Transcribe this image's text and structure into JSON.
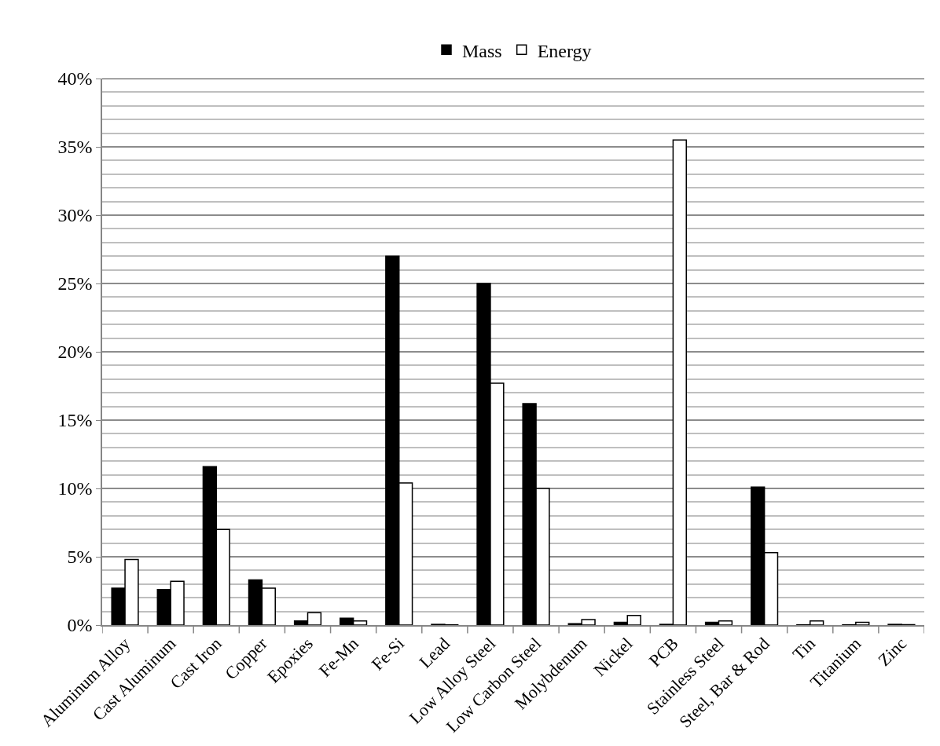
{
  "chart_data": {
    "type": "bar",
    "categories": [
      "Aluminum Alloy",
      "Cast Aluminum",
      "Cast Iron",
      "Copper",
      "Epoxies",
      "Fe-Mn",
      "Fe-Si",
      "Lead",
      "Low Alloy Steel",
      "Low Carbon Steel",
      "Molybdenum",
      "Nickel",
      "PCB",
      "Stainless Steel",
      "Steel, Bar & Rod",
      "Tin",
      "Titanium",
      "Zinc"
    ],
    "series": [
      {
        "name": "Mass",
        "color": "#000000",
        "values": [
          2.7,
          2.6,
          11.6,
          3.3,
          0.3,
          0.5,
          27.0,
          0.05,
          25.0,
          16.2,
          0.1,
          0.2,
          0.05,
          0.2,
          10.1,
          0.02,
          0.02,
          0.05
        ]
      },
      {
        "name": "Energy",
        "color": "#ffffff",
        "values": [
          4.8,
          3.2,
          7.0,
          2.7,
          0.9,
          0.3,
          10.4,
          0.02,
          17.7,
          10.0,
          0.4,
          0.7,
          35.5,
          0.3,
          5.3,
          0.3,
          0.2,
          0.03
        ]
      }
    ],
    "ylim": [
      0,
      40
    ],
    "yticks": [
      {
        "value": 0,
        "label": "0%"
      },
      {
        "value": 5,
        "label": "5%"
      },
      {
        "value": 10,
        "label": "10%"
      },
      {
        "value": 15,
        "label": "15%"
      },
      {
        "value": 20,
        "label": "20%"
      },
      {
        "value": 25,
        "label": "25%"
      },
      {
        "value": 30,
        "label": "30%"
      },
      {
        "value": 35,
        "label": "35%"
      },
      {
        "value": 40,
        "label": "40%"
      }
    ],
    "grid": "y",
    "legend": "top"
  }
}
